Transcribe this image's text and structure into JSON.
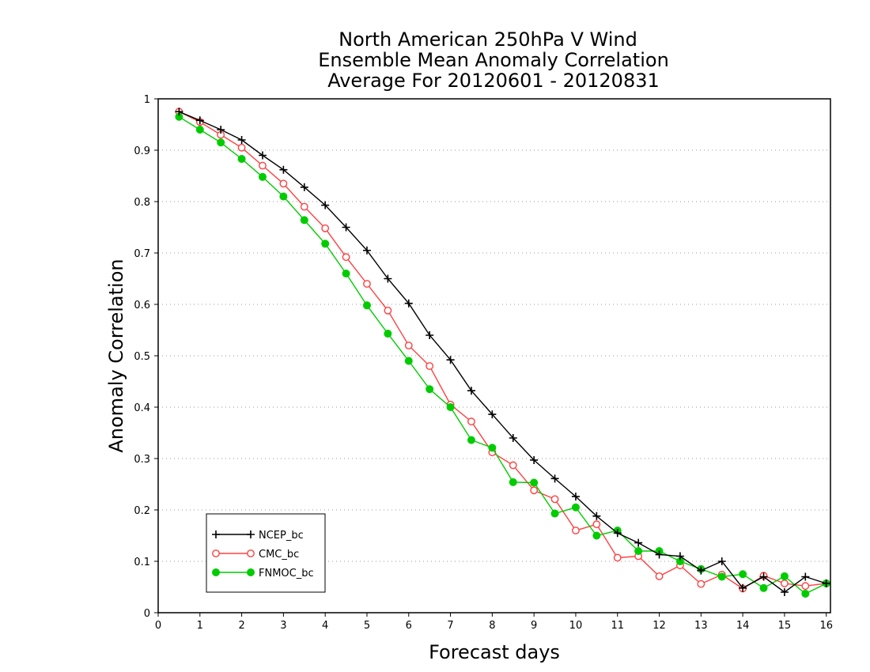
{
  "chart_data": {
    "type": "line",
    "title": [
      "North American 250hPa V Wind",
      "Ensemble Mean Anomaly Correlation",
      "Average For 20120601 - 20120831"
    ],
    "xlabel": "Forecast days",
    "ylabel": "Anomaly Correlation",
    "xlim": [
      0,
      16.1
    ],
    "ylim": [
      0,
      1
    ],
    "x_ticks": [
      0,
      1,
      2,
      3,
      4,
      5,
      6,
      7,
      8,
      9,
      10,
      11,
      12,
      13,
      14,
      15,
      16
    ],
    "y_ticks": [
      0,
      0.1,
      0.2,
      0.3,
      0.4,
      0.5,
      0.6,
      0.7,
      0.8,
      0.9,
      1
    ],
    "y_tick_labels": [
      "0",
      "0.1",
      "0.2",
      "0.3",
      "0.4",
      "0.5",
      "0.6",
      "0.7",
      "0.8",
      "0.9",
      "1"
    ],
    "grid": "horizontal dotted",
    "legend_position": "bottom-left",
    "x": [
      0.5,
      1,
      1.5,
      2,
      2.5,
      3,
      3.5,
      4,
      4.5,
      5,
      5.5,
      6,
      6.5,
      7,
      7.5,
      8,
      8.5,
      9,
      9.5,
      10,
      10.5,
      11,
      11.5,
      12,
      12.5,
      13,
      13.5,
      14,
      14.5,
      15,
      15.5,
      16
    ],
    "series": [
      {
        "name": "NCEP_bc",
        "color": "#000000",
        "marker": "plus",
        "values": [
          0.975,
          0.958,
          0.94,
          0.92,
          0.89,
          0.862,
          0.828,
          0.793,
          0.75,
          0.705,
          0.65,
          0.602,
          0.54,
          0.492,
          0.432,
          0.386,
          0.34,
          0.297,
          0.261,
          0.226,
          0.188,
          0.155,
          0.136,
          0.113,
          0.11,
          0.082,
          0.1,
          0.048,
          0.07,
          0.04,
          0.07,
          0.057
        ]
      },
      {
        "name": "CMC_bc",
        "color": "#ff4040",
        "marker": "open-circle",
        "values": [
          0.975,
          0.955,
          0.93,
          0.905,
          0.87,
          0.835,
          0.79,
          0.748,
          0.692,
          0.64,
          0.588,
          0.52,
          0.48,
          0.405,
          0.372,
          0.312,
          0.287,
          0.238,
          0.221,
          0.16,
          0.172,
          0.107,
          0.11,
          0.071,
          0.092,
          0.056,
          0.074,
          0.047,
          0.072,
          0.057,
          0.052,
          0.057
        ]
      },
      {
        "name": "FNMOC_bc",
        "color": "#00cc00",
        "marker": "filled-circle",
        "values": [
          0.965,
          0.94,
          0.915,
          0.883,
          0.848,
          0.81,
          0.764,
          0.718,
          0.66,
          0.598,
          0.543,
          0.49,
          0.435,
          0.4,
          0.336,
          0.321,
          0.254,
          0.253,
          0.193,
          0.205,
          0.15,
          0.16,
          0.12,
          0.12,
          0.1,
          0.085,
          0.07,
          0.075,
          0.048,
          0.071,
          0.037,
          0.057
        ]
      }
    ]
  }
}
